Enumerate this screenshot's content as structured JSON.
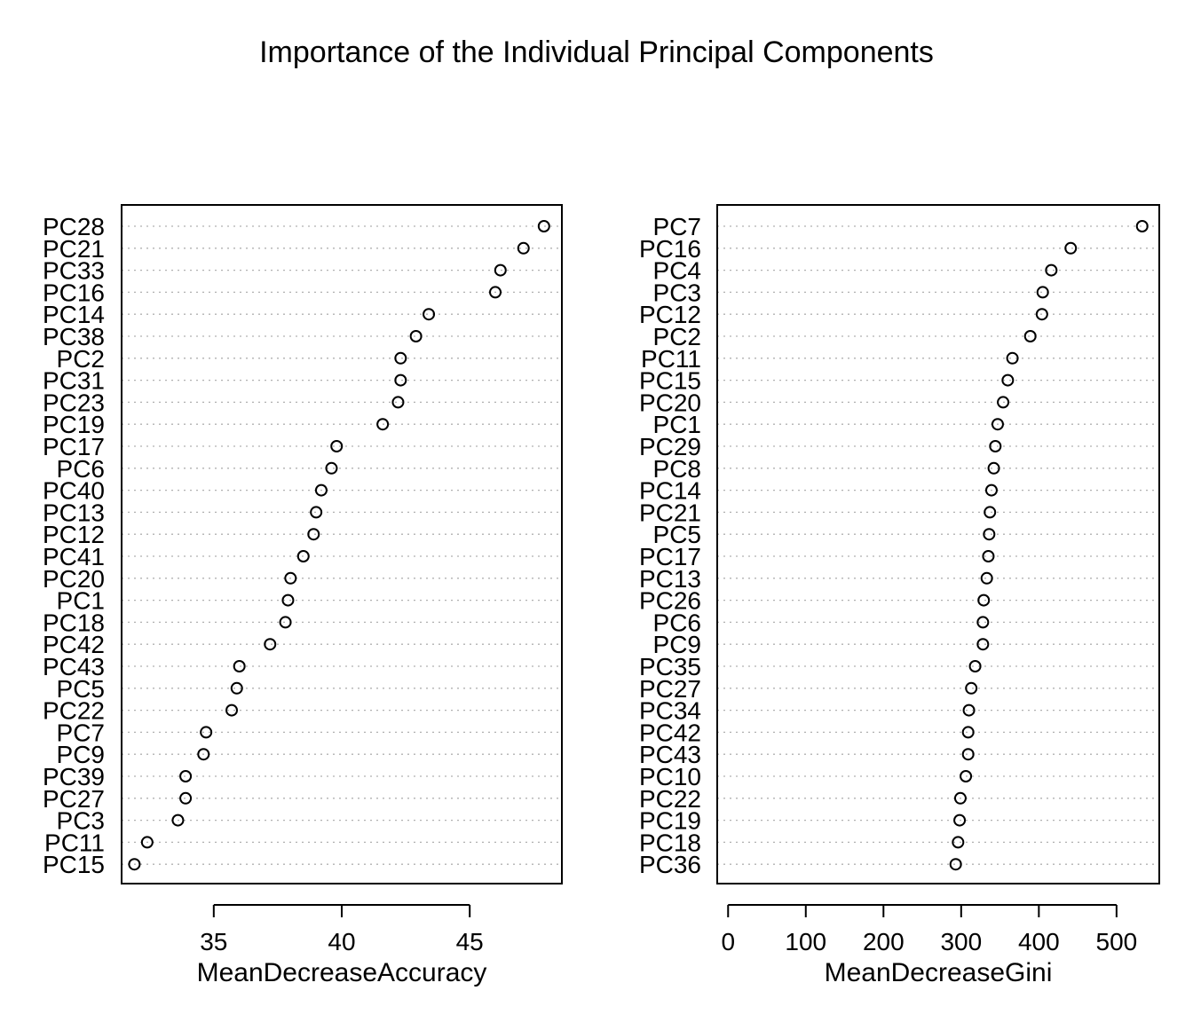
{
  "title": "Importance of the Individual Principal Components",
  "chart_data": [
    {
      "type": "scatter",
      "subtype": "dotchart",
      "xlabel": "MeanDecreaseAccuracy",
      "xlim": [
        31.4,
        48.6
      ],
      "xticks": [
        35,
        40,
        45
      ],
      "grid": "dotted horizontal guide per category",
      "marker": "open circle",
      "categories": [
        "PC28",
        "PC21",
        "PC33",
        "PC16",
        "PC14",
        "PC38",
        "PC2",
        "PC31",
        "PC23",
        "PC19",
        "PC17",
        "PC6",
        "PC40",
        "PC13",
        "PC12",
        "PC41",
        "PC20",
        "PC1",
        "PC18",
        "PC42",
        "PC43",
        "PC5",
        "PC22",
        "PC7",
        "PC9",
        "PC39",
        "PC27",
        "PC3",
        "PC11",
        "PC15"
      ],
      "values": [
        47.9,
        47.1,
        46.2,
        46.0,
        43.4,
        42.9,
        42.3,
        42.3,
        42.2,
        41.6,
        39.8,
        39.6,
        39.2,
        39.0,
        38.9,
        38.5,
        38.0,
        37.9,
        37.8,
        37.2,
        36.0,
        35.9,
        35.7,
        34.7,
        34.6,
        33.9,
        33.9,
        33.6,
        32.4,
        31.9
      ]
    },
    {
      "type": "scatter",
      "subtype": "dotchart",
      "xlabel": "MeanDecreaseGini",
      "xlim": [
        -14,
        555
      ],
      "xticks": [
        0,
        100,
        200,
        300,
        400,
        500
      ],
      "grid": "dotted horizontal guide per category",
      "marker": "open circle",
      "categories": [
        "PC7",
        "PC16",
        "PC4",
        "PC3",
        "PC12",
        "PC2",
        "PC11",
        "PC15",
        "PC20",
        "PC1",
        "PC29",
        "PC8",
        "PC14",
        "PC21",
        "PC5",
        "PC17",
        "PC13",
        "PC26",
        "PC6",
        "PC9",
        "PC35",
        "PC27",
        "PC34",
        "PC42",
        "PC43",
        "PC10",
        "PC22",
        "PC19",
        "PC18",
        "PC36"
      ],
      "values": [
        533,
        441,
        416,
        405,
        404,
        389,
        366,
        360,
        354,
        347,
        344,
        342,
        339,
        337,
        336,
        335,
        333,
        329,
        328,
        328,
        318,
        313,
        310,
        309,
        309,
        306,
        299,
        298,
        296,
        293
      ]
    }
  ]
}
